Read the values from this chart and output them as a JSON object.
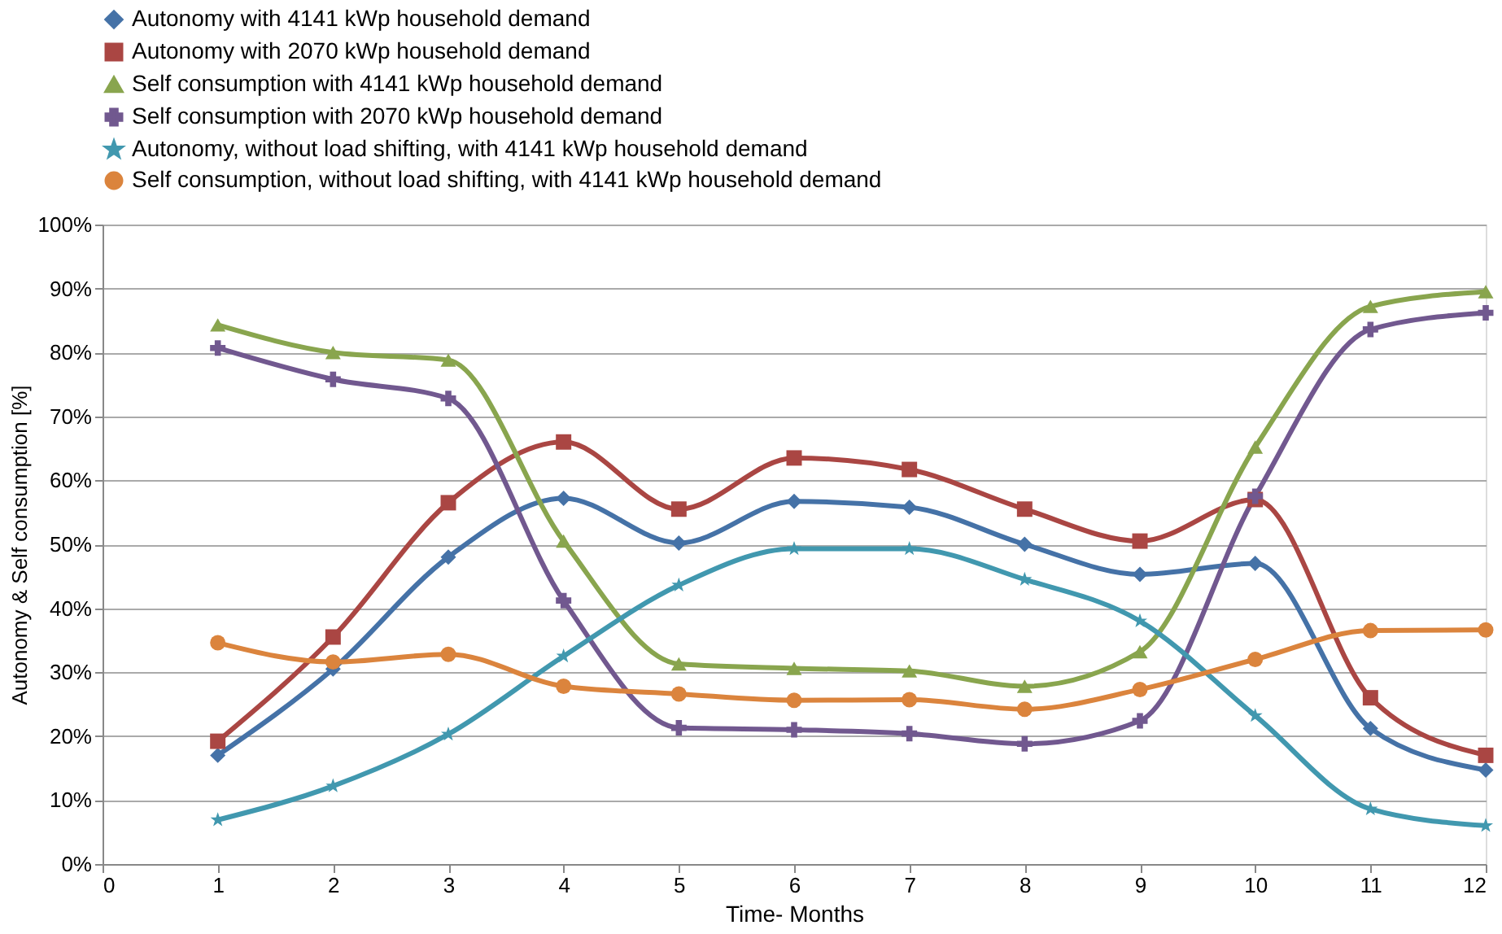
{
  "chart_data": {
    "type": "line",
    "xlabel": "Time- Months",
    "ylabel": "Autonomy & Self consumption [%]",
    "x": [
      1,
      2,
      3,
      4,
      5,
      6,
      7,
      8,
      9,
      10,
      11,
      12
    ],
    "series": [
      {
        "name": "Autonomy with 4141 kWp household demand",
        "color": "#4572a7",
        "marker": "diamond",
        "values": [
          17,
          30.5,
          48,
          57.2,
          50.2,
          56.7,
          55.8,
          50,
          45.3,
          47,
          21.2,
          14.7
        ]
      },
      {
        "name": "Autonomy with 2070 kWp household demand",
        "color": "#aa4643",
        "marker": "square",
        "values": [
          19.2,
          35.5,
          56.5,
          66,
          55.5,
          63.5,
          61.7,
          55.5,
          50.5,
          57,
          26,
          17
        ]
      },
      {
        "name": "Self consumption with 4141 kWp household demand",
        "color": "#89a54e",
        "marker": "triangle",
        "values": [
          84.3,
          80,
          78.8,
          50.5,
          31.3,
          30.6,
          30.2,
          27.8,
          33.2,
          65.2,
          87.2,
          89.5
        ]
      },
      {
        "name": "Self consumption with 2070 kWp household demand",
        "color": "#71588f",
        "marker": "cross",
        "values": [
          80.7,
          75.8,
          72.8,
          41.2,
          21.3,
          21,
          20.4,
          18.8,
          22.4,
          57.5,
          83.6,
          86.2
        ]
      },
      {
        "name": "Autonomy, without load shifting, with 4141 kWp household demand",
        "color": "#4198af",
        "marker": "star",
        "values": [
          6.9,
          12.2,
          20.3,
          32.5,
          43.6,
          49.3,
          49.3,
          44.5,
          38,
          23.2,
          8.6,
          6
        ]
      },
      {
        "name": "Self consumption, without load shifting, with 4141 kWp household demand",
        "color": "#db843d",
        "marker": "circle",
        "values": [
          34.6,
          31.6,
          32.8,
          27.8,
          26.6,
          25.6,
          25.7,
          24.2,
          27.3,
          32,
          36.5,
          36.6
        ]
      }
    ],
    "xlim": [
      0,
      12
    ],
    "xticks": [
      0,
      1,
      2,
      3,
      4,
      5,
      6,
      7,
      8,
      9,
      10,
      11,
      12
    ],
    "ylim": [
      0,
      100
    ],
    "yticks": [
      {
        "value": 0,
        "label": "0%"
      },
      {
        "value": 10,
        "label": "10%"
      },
      {
        "value": 20,
        "label": "20%"
      },
      {
        "value": 30,
        "label": "30%"
      },
      {
        "value": 40,
        "label": "40%"
      },
      {
        "value": 50,
        "label": "50%"
      },
      {
        "value": 60,
        "label": "60%"
      },
      {
        "value": 70,
        "label": "70%"
      },
      {
        "value": 80,
        "label": "80%"
      },
      {
        "value": 90,
        "label": "90%"
      },
      {
        "value": 100,
        "label": "100%"
      }
    ],
    "grid": "y",
    "legend": "top",
    "line_style": "solid"
  }
}
